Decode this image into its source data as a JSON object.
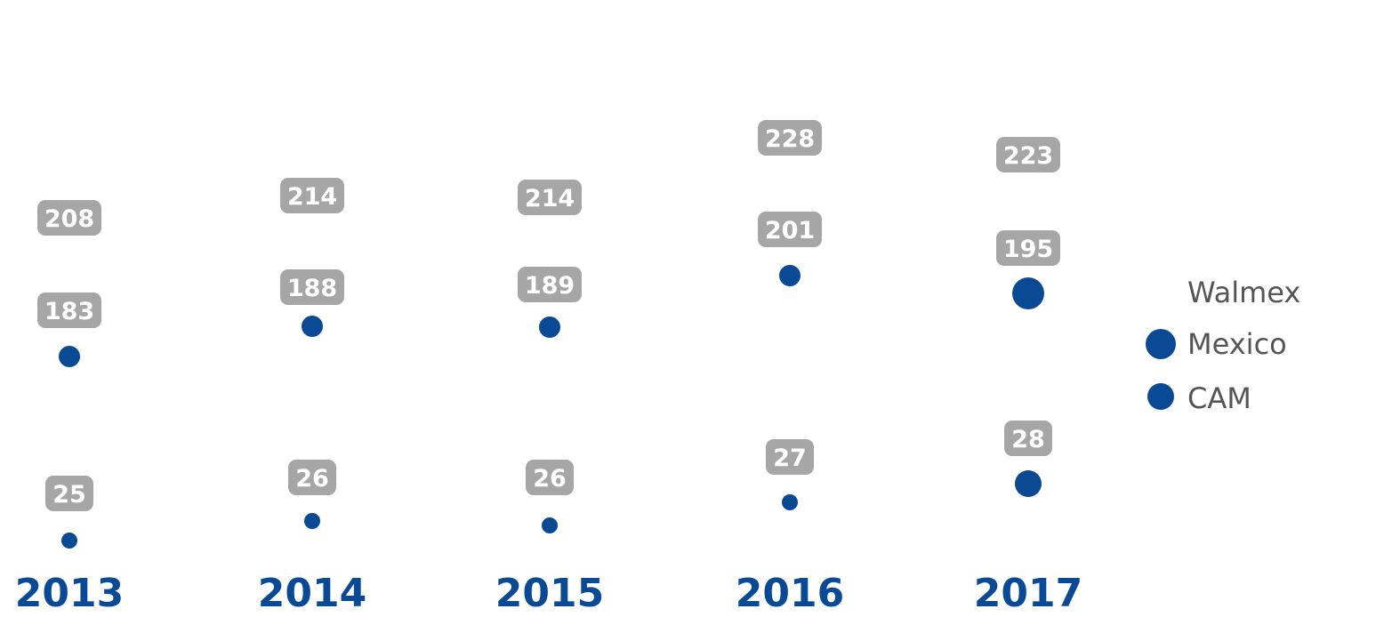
{
  "colors": {
    "dot": "#0a4a95",
    "badge": "#a6a6a6",
    "year": "#0a4a95",
    "legend_text": "#555555"
  },
  "chart_data": {
    "type": "scatter",
    "categories": [
      "2013",
      "2014",
      "2015",
      "2016",
      "2017"
    ],
    "series": [
      {
        "name": "Walmex",
        "values": [
          208,
          214,
          214,
          228,
          223
        ]
      },
      {
        "name": "Mexico",
        "values": [
          183,
          188,
          189,
          201,
          195
        ]
      },
      {
        "name": "CAM",
        "values": [
          25,
          26,
          26,
          27,
          28
        ]
      }
    ],
    "legend": {
      "position": "right",
      "title": "Walmex",
      "entries": [
        "Mexico",
        "CAM"
      ]
    },
    "grid": false
  }
}
